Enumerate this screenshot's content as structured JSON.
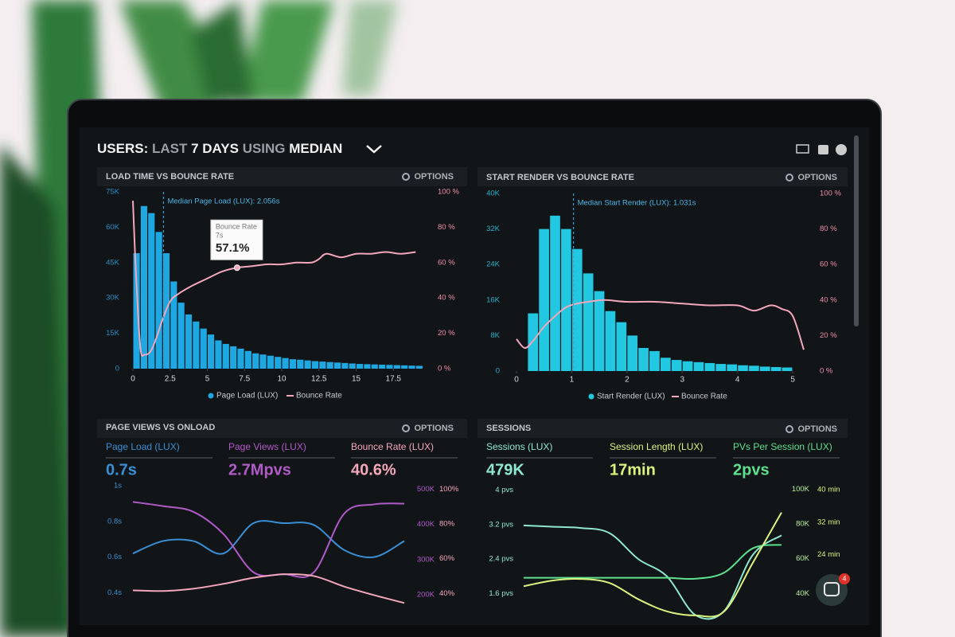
{
  "header": {
    "parts": [
      "USERS:",
      "LAST",
      "7 DAYS",
      "USING",
      "MEDIAN"
    ]
  },
  "chat_badge": "4",
  "chart_data": [
    {
      "type": "histogram",
      "title": "LOAD TIME VS BOUNCE RATE",
      "options": "OPTIONS",
      "bins": [
        0,
        0.5,
        1,
        1.5,
        2,
        2.5,
        3,
        3.5,
        4,
        4.5,
        5,
        5.5,
        6,
        6.5,
        7,
        7.5,
        8,
        8.5,
        9,
        9.5,
        10,
        10.5,
        11,
        11.5,
        12,
        12.5,
        13,
        13.5,
        14,
        14.5,
        15,
        15.5,
        16,
        16.5,
        17,
        17.5,
        18,
        18.5,
        19,
        19.5
      ],
      "series": [
        {
          "name": "Page Load (LUX)",
          "color": "#1ea7e0",
          "values": [
            49000,
            69000,
            66000,
            58000,
            49000,
            37000,
            28000,
            23000,
            20000,
            17000,
            14500,
            12000,
            10500,
            9500,
            8500,
            7500,
            6500,
            6000,
            5500,
            5000,
            4500,
            4000,
            3800,
            3500,
            3200,
            3000,
            2800,
            2600,
            2400,
            2200,
            2000,
            1900,
            1800,
            1700,
            1600,
            1500,
            1400,
            1300,
            1200
          ]
        },
        {
          "name": "Bounce Rate",
          "color": "#f4a7ba",
          "axis": "y2",
          "x": [
            0,
            0.2,
            0.5,
            0.8,
            1.2,
            1.6,
            2,
            2.5,
            3,
            4,
            5,
            6,
            7,
            8,
            9,
            10,
            11,
            12,
            12.5,
            13,
            14,
            15,
            16,
            17,
            18,
            19
          ],
          "values": [
            95,
            55,
            12,
            8,
            10,
            18,
            28,
            38,
            42,
            47,
            51,
            55,
            57.1,
            58,
            59,
            59,
            60,
            60,
            62,
            65,
            63,
            65,
            65,
            66,
            65,
            66
          ]
        }
      ],
      "xlim": [
        0,
        20
      ],
      "xticks": [
        0,
        2.5,
        5,
        7.5,
        10,
        12.5,
        15,
        17.5
      ],
      "ylim": [
        0,
        75000
      ],
      "yticks": [
        0,
        {
          "value": 15000,
          "label": "15K"
        },
        {
          "value": 30000,
          "label": "30K"
        },
        {
          "value": 45000,
          "label": "45K"
        },
        {
          "value": 60000,
          "label": "60K"
        },
        {
          "value": 75000,
          "label": "75K"
        }
      ],
      "y2lim": [
        0,
        100
      ],
      "y2ticks": [
        {
          "value": 0,
          "label": "0 %"
        },
        {
          "value": 20,
          "label": "20 %"
        },
        {
          "value": 40,
          "label": "40 %"
        },
        {
          "value": 60,
          "label": "60 %"
        },
        {
          "value": 80,
          "label": "80 %"
        },
        {
          "value": 100,
          "label": "100 %"
        }
      ],
      "annotation": {
        "text": "Median Page Load (LUX): 2.056s",
        "x": 2.056
      },
      "tooltip": {
        "title": "Bounce Rate",
        "subtitle": "7s",
        "value_label": "57.1%",
        "x": 7,
        "value": 57.1
      }
    },
    {
      "type": "histogram",
      "title": "START RENDER VS BOUNCE RATE",
      "options": "OPTIONS",
      "bins": [
        0.2,
        0.4,
        0.6,
        0.8,
        1,
        1.2,
        1.4,
        1.6,
        1.8,
        2,
        2.2,
        2.4,
        2.6,
        2.8,
        3,
        3.2,
        3.4,
        3.6,
        3.8,
        4,
        4.2,
        4.4,
        4.6,
        4.8,
        5
      ],
      "series": [
        {
          "name": "Start Render (LUX)",
          "color": "#22c8e2",
          "values": [
            13000,
            32000,
            35000,
            32000,
            27500,
            22000,
            18000,
            13500,
            11000,
            8000,
            5200,
            4500,
            3000,
            2500,
            2200,
            2000,
            1800,
            1600,
            1500,
            1300,
            1200,
            1000,
            900,
            800
          ]
        },
        {
          "name": "Bounce Rate",
          "color": "#f4a7ba",
          "axis": "y2",
          "x": [
            0,
            0.15,
            0.3,
            0.5,
            0.7,
            0.9,
            1.1,
            1.3,
            1.6,
            2,
            2.5,
            3,
            3.5,
            4,
            4.3,
            4.6,
            4.8,
            5,
            5.2
          ],
          "values": [
            18,
            13,
            17,
            25,
            31,
            36,
            38,
            39,
            40,
            39,
            39,
            38,
            37,
            37,
            34,
            37,
            35,
            31,
            12
          ]
        }
      ],
      "xlim": [
        0,
        5.2
      ],
      "xticks": [
        0,
        1,
        2,
        3,
        4,
        5
      ],
      "ylim": [
        0,
        40000
      ],
      "yticks": [
        0,
        {
          "value": 8000,
          "label": "8K"
        },
        {
          "value": 16000,
          "label": "16K"
        },
        {
          "value": 24000,
          "label": "24K"
        },
        {
          "value": 32000,
          "label": "32K"
        },
        {
          "value": 40000,
          "label": "40K"
        }
      ],
      "y2lim": [
        0,
        100
      ],
      "y2ticks": [
        {
          "value": 0,
          "label": "0 %"
        },
        {
          "value": 20,
          "label": "20 %"
        },
        {
          "value": 40,
          "label": "40 %"
        },
        {
          "value": 60,
          "label": "60 %"
        },
        {
          "value": 80,
          "label": "80 %"
        },
        {
          "value": 100,
          "label": "100 %"
        }
      ],
      "annotation": {
        "text": "Median Start Render (LUX): 1.031s",
        "x": 1.031
      }
    },
    {
      "type": "line",
      "title": "PAGE VIEWS VS ONLOAD",
      "options": "OPTIONS",
      "kpis": [
        {
          "label": "Page Load (LUX)",
          "value": "0.7s",
          "color": "#3a8fd4"
        },
        {
          "label": "Page Views (LUX)",
          "value": "2.7Mpvs",
          "color": "#b05ac8"
        },
        {
          "label": "Bounce Rate (LUX)",
          "value": "40.6%",
          "color": "#f4a7ba"
        }
      ],
      "series": [
        {
          "color": "#3a8fd4",
          "values": [
            0.62,
            0.69,
            0.69,
            0.62,
            0.79,
            0.79,
            0.78,
            0.64,
            0.6,
            0.69
          ]
        },
        {
          "color": "#b05ac8",
          "axis": "y2",
          "values": [
            464000,
            452000,
            436000,
            373000,
            264000,
            259000,
            264000,
            430000,
            457000,
            459000
          ]
        },
        {
          "color": "#f4a7ba",
          "axis": "y3",
          "values": [
            41.8,
            41.4,
            42.7,
            45.5,
            49,
            51,
            50,
            44,
            39,
            34.5
          ]
        }
      ],
      "ylim": [
        0.25,
        1.0
      ],
      "yticks": [
        {
          "value": 1,
          "label": "1s"
        },
        {
          "value": 0.8,
          "label": "0.8s"
        },
        {
          "value": 0.6,
          "label": "0.6s"
        },
        {
          "value": 0.4,
          "label": "0.4s"
        }
      ],
      "y2lim": [
        130000,
        510000
      ],
      "y2ticks": [
        {
          "value": 500000,
          "label": "500K"
        },
        {
          "value": 400000,
          "label": "400K"
        },
        {
          "value": 300000,
          "label": "300K"
        },
        {
          "value": 200000,
          "label": "200K"
        }
      ],
      "y3lim": [
        25,
        102
      ],
      "y3ticks": [
        {
          "value": 100,
          "label": "100%"
        },
        {
          "value": 80,
          "label": "80%"
        },
        {
          "value": 60,
          "label": "60%"
        },
        {
          "value": 40,
          "label": "40%"
        }
      ]
    },
    {
      "type": "line",
      "title": "SESSIONS",
      "options": "OPTIONS",
      "kpis": [
        {
          "label": "Sessions (LUX)",
          "value": "479K",
          "color": "#8ee8cc"
        },
        {
          "label": "Session Length (LUX)",
          "value": "17min",
          "color": "#dcf27e"
        },
        {
          "label": "PVs Per Session (LUX)",
          "value": "2pvs",
          "color": "#5fe08e"
        }
      ],
      "series": [
        {
          "color": "#8ee8cc",
          "values": [
            3.18,
            3.15,
            3.12,
            3.0,
            2.4,
            2.0,
            1.1,
            1.2,
            2.5,
            2.95
          ]
        },
        {
          "color": "#5fe08e",
          "axis": "y2",
          "values": [
            49000,
            49000,
            49000,
            49000,
            49000,
            49000,
            48500,
            52000,
            66000,
            68000
          ]
        },
        {
          "color": "#dcf27e",
          "axis": "y3",
          "values": [
            16.2,
            17.6,
            18,
            17,
            13,
            10,
            9,
            10,
            22,
            34.4
          ]
        }
      ],
      "ylim": [
        1.0,
        4.1
      ],
      "yticks": [
        {
          "value": 4,
          "label": "4 pvs"
        },
        {
          "value": 3.2,
          "label": "3.2 pvs"
        },
        {
          "value": 2.4,
          "label": "2.4 pvs"
        },
        {
          "value": 1.6,
          "label": "1.6 pvs"
        }
      ],
      "y2lim": [
        25000,
        102000
      ],
      "y2ticks": [
        {
          "value": 100000,
          "label": "100K"
        },
        {
          "value": 80000,
          "label": "80K"
        },
        {
          "value": 60000,
          "label": "60K"
        },
        {
          "value": 40000,
          "label": "40K"
        }
      ],
      "y3lim": [
        8,
        41
      ],
      "y3ticks": [
        {
          "value": 40,
          "label": "40 min"
        },
        {
          "value": 32,
          "label": "32 min"
        },
        {
          "value": 24,
          "label": "24 min"
        }
      ]
    }
  ]
}
